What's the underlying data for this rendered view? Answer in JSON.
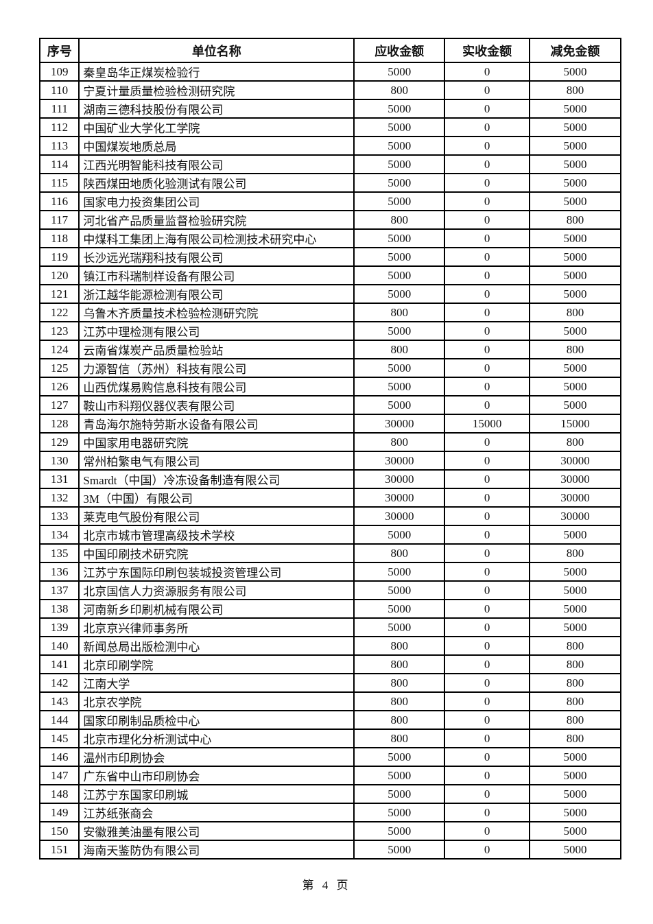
{
  "table": {
    "headers": [
      "序号",
      "单位名称",
      "应收金额",
      "实收金额",
      "减免金额"
    ],
    "rows": [
      [
        "109",
        "秦皇岛华正煤炭检验行",
        "5000",
        "0",
        "5000"
      ],
      [
        "110",
        "宁夏计量质量检验检测研究院",
        "800",
        "0",
        "800"
      ],
      [
        "111",
        "湖南三德科技股份有限公司",
        "5000",
        "0",
        "5000"
      ],
      [
        "112",
        "中国矿业大学化工学院",
        "5000",
        "0",
        "5000"
      ],
      [
        "113",
        "中国煤炭地质总局",
        "5000",
        "0",
        "5000"
      ],
      [
        "114",
        "江西光明智能科技有限公司",
        "5000",
        "0",
        "5000"
      ],
      [
        "115",
        "陕西煤田地质化验测试有限公司",
        "5000",
        "0",
        "5000"
      ],
      [
        "116",
        "国家电力投资集团公司",
        "5000",
        "0",
        "5000"
      ],
      [
        "117",
        "河北省产品质量监督检验研究院",
        "800",
        "0",
        "800"
      ],
      [
        "118",
        "中煤科工集团上海有限公司检测技术研究中心",
        "5000",
        "0",
        "5000"
      ],
      [
        "119",
        "长沙远光瑞翔科技有限公司",
        "5000",
        "0",
        "5000"
      ],
      [
        "120",
        "镇江市科瑞制样设备有限公司",
        "5000",
        "0",
        "5000"
      ],
      [
        "121",
        "浙江越华能源检测有限公司",
        "5000",
        "0",
        "5000"
      ],
      [
        "122",
        "乌鲁木齐质量技术检验检测研究院",
        "800",
        "0",
        "800"
      ],
      [
        "123",
        "江苏中理检测有限公司",
        "5000",
        "0",
        "5000"
      ],
      [
        "124",
        "云南省煤炭产品质量检验站",
        "800",
        "0",
        "800"
      ],
      [
        "125",
        "力源智信（苏州）科技有限公司",
        "5000",
        "0",
        "5000"
      ],
      [
        "126",
        "山西优煤易购信息科技有限公司",
        "5000",
        "0",
        "5000"
      ],
      [
        "127",
        "鞍山市科翔仪器仪表有限公司",
        "5000",
        "0",
        "5000"
      ],
      [
        "128",
        "青岛海尔施特劳斯水设备有限公司",
        "30000",
        "15000",
        "15000"
      ],
      [
        "129",
        "中国家用电器研究院",
        "800",
        "0",
        "800"
      ],
      [
        "130",
        "常州柏繁电气有限公司",
        "30000",
        "0",
        "30000"
      ],
      [
        "131",
        "Smardt（中国）冷冻设备制造有限公司",
        "30000",
        "0",
        "30000"
      ],
      [
        "132",
        "3M（中国）有限公司",
        "30000",
        "0",
        "30000"
      ],
      [
        "133",
        "莱克电气股份有限公司",
        "30000",
        "0",
        "30000"
      ],
      [
        "134",
        "北京市城市管理高级技术学校",
        "5000",
        "0",
        "5000"
      ],
      [
        "135",
        "中国印刷技术研究院",
        "800",
        "0",
        "800"
      ],
      [
        "136",
        "江苏宁东国际印刷包装城投资管理公司",
        "5000",
        "0",
        "5000"
      ],
      [
        "137",
        "北京国信人力资源服务有限公司",
        "5000",
        "0",
        "5000"
      ],
      [
        "138",
        "河南新乡印刷机械有限公司",
        "5000",
        "0",
        "5000"
      ],
      [
        "139",
        "北京京兴律师事务所",
        "5000",
        "0",
        "5000"
      ],
      [
        "140",
        "新闻总局出版检测中心",
        "800",
        "0",
        "800"
      ],
      [
        "141",
        "北京印刷学院",
        "800",
        "0",
        "800"
      ],
      [
        "142",
        "江南大学",
        "800",
        "0",
        "800"
      ],
      [
        "143",
        "北京农学院",
        "800",
        "0",
        "800"
      ],
      [
        "144",
        "国家印刷制品质检中心",
        "800",
        "0",
        "800"
      ],
      [
        "145",
        "北京市理化分析测试中心",
        "800",
        "0",
        "800"
      ],
      [
        "146",
        "温州市印刷协会",
        "5000",
        "0",
        "5000"
      ],
      [
        "147",
        "广东省中山市印刷协会",
        "5000",
        "0",
        "5000"
      ],
      [
        "148",
        "江苏宁东国家印刷城",
        "5000",
        "0",
        "5000"
      ],
      [
        "149",
        "江苏纸张商会",
        "5000",
        "0",
        "5000"
      ],
      [
        "150",
        "安徽雅美油墨有限公司",
        "5000",
        "0",
        "5000"
      ],
      [
        "151",
        "海南天鉴防伪有限公司",
        "5000",
        "0",
        "5000"
      ]
    ]
  },
  "footer": {
    "page_label": "第 4 页"
  }
}
